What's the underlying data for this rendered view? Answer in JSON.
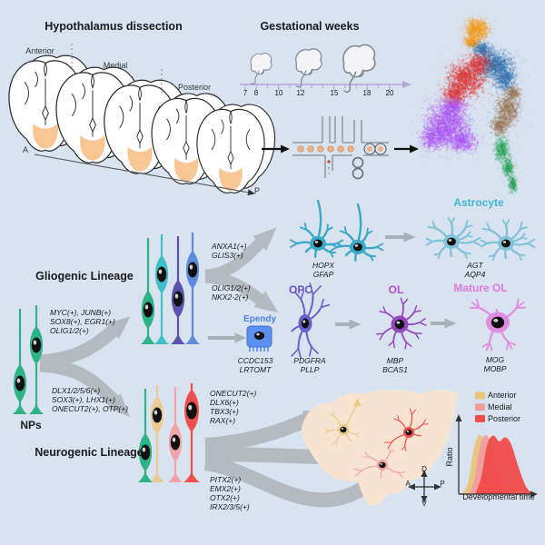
{
  "header": {
    "dissection_title": "Hypothalamus dissection",
    "gestational_title": "Gestational weeks"
  },
  "dissection": {
    "regions": [
      "Anterior",
      "Medial",
      "Posterior"
    ],
    "axis_start": "A",
    "axis_end": "P",
    "hypothalamus_color": "#f8c595"
  },
  "timeline": {
    "ticks": [
      "7",
      "8",
      "10",
      "12",
      "15",
      "18",
      "20"
    ],
    "axis_color": "#b3a5d6"
  },
  "umap": {
    "cluster_colors": [
      "#f49a1d",
      "#3170ad",
      "#dd2f2f",
      "#a94df2",
      "#95714f",
      "#27a257"
    ]
  },
  "lineages": {
    "nps_label": "NPs",
    "gliogenic_title": "Gliogenic Lineage",
    "neurogenic_title": "Neurogenic Lineage",
    "gliogenic_genes": [
      "MYC(+), JUNB(+)",
      "SOX8(+), EGR1(+)",
      "OLIG1/2(+)"
    ],
    "neurogenic_genes": [
      "DLX1/2/5/6(+)",
      "SOX3(+), LHX1(+)",
      "ONECUT2(+), OTP(+)"
    ],
    "astro_branch_genes": [
      "ANXA1(+)",
      "GLIS3(+)"
    ],
    "opc_branch_genes": [
      "OLIG1/2(+)",
      "NKX2-2(+)"
    ],
    "neuro_top_genes": [
      "ONECUT2(+)",
      "DLX6(+)",
      "TBX3(+)",
      "RAX(+)"
    ],
    "neuro_bottom_genes": [
      "PITX2(+)",
      "EMX2(+)",
      "OTX2(+)",
      "IRX2/3/5(+)"
    ]
  },
  "cells": {
    "np_color": "#2db387",
    "glial_ip_colors": [
      "#3ec0c9",
      "#5c8be0",
      "#5b51ae",
      "#2db387"
    ],
    "neuron_ip_colors": [
      "#eccb92",
      "#ef4f4c",
      "#f0a3a8",
      "#2db387"
    ],
    "astrocyte": {
      "label": "Astrocyte",
      "label_color": "#45b5da",
      "immature_markers": [
        "HOPX",
        "GFAP"
      ],
      "mature_markers": [
        "AGT",
        "AQP4"
      ],
      "immature_color": "#3ba8c6",
      "mature_color": "#82c3da"
    },
    "ependymal": {
      "label": "Ependy",
      "label_color": "#4b82e8",
      "markers": [
        "CCDC153",
        "LRTOMT"
      ],
      "color": "#5b8ff0"
    },
    "opc": {
      "label": "OPC",
      "label_color": "#6a50c8",
      "markers": [
        "PDGFRA",
        "PLLP"
      ],
      "color": "#6a5ecb"
    },
    "ol": {
      "label": "OL",
      "label_color": "#b14ccb",
      "markers": [
        "MBP",
        "BCAS1"
      ],
      "color": "#9348be"
    },
    "mature_ol": {
      "label": "Mature OL",
      "label_color": "#db79dc",
      "markers": [
        "MOG",
        "MOBP"
      ],
      "color": "#e18be2"
    },
    "brain_neuron_colors": [
      "#ecca8d",
      "#f0a3a8",
      "#ef4f4c"
    ]
  },
  "anatomy": {
    "compass": [
      "D",
      "V",
      "A",
      "P"
    ],
    "region_color": "#f7e3d0"
  },
  "chart_data": {
    "type": "area",
    "title": "",
    "xlabel": "Developmental time",
    "ylabel": "Ratio",
    "x_axis_numeric": false,
    "grid": false,
    "legend_position": "top-right",
    "series": [
      {
        "name": "Anterior",
        "color": "#e9c37c",
        "x": [
          0.02,
          0.1,
          0.17,
          0.24,
          0.31,
          0.38,
          0.46,
          0.55
        ],
        "y": [
          0,
          0.18,
          0.72,
          1,
          0.92,
          0.5,
          0.15,
          0
        ]
      },
      {
        "name": "Medial",
        "color": "#ef9e9e",
        "x": [
          0.1,
          0.18,
          0.25,
          0.32,
          0.4,
          0.48,
          0.57,
          0.66
        ],
        "y": [
          0,
          0.2,
          0.75,
          1,
          0.9,
          0.48,
          0.14,
          0
        ]
      },
      {
        "name": "Posterior",
        "color": "#f14b4b",
        "x": [
          0.2,
          0.28,
          0.36,
          0.44,
          0.52,
          0.6,
          0.68,
          0.78,
          0.88,
          0.97
        ],
        "y": [
          0,
          0.3,
          0.85,
          1,
          0.9,
          0.97,
          0.85,
          0.45,
          0.12,
          0
        ]
      }
    ]
  }
}
